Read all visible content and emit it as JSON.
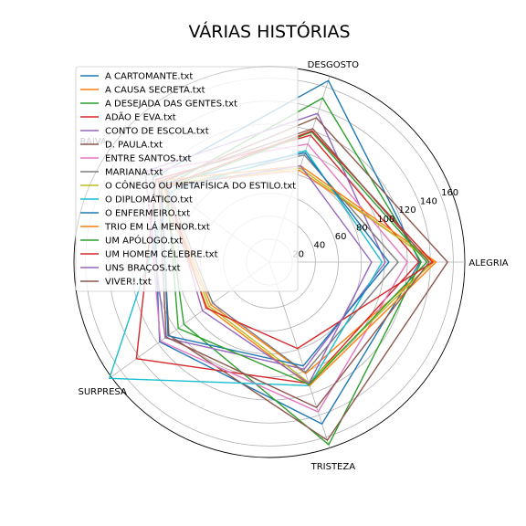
{
  "chart_data": {
    "type": "radar",
    "title": "VÁRIAS HISTÓRIAS",
    "axes": [
      "ALEGRIA",
      "DESGOSTO",
      "RAIVA",
      "SURPRESA",
      "TRISTEZA"
    ],
    "r_ticks": [
      "20",
      "40",
      "60",
      "80",
      "100",
      "120",
      "140",
      "160"
    ],
    "rlim": [
      0,
      170
    ],
    "grid": true,
    "legend_position": "upper-left",
    "series": [
      {
        "name": "A CARTOMANTE.txt",
        "color": "#1f77b4",
        "values": [
          131,
          166,
          125,
          118,
          148
        ]
      },
      {
        "name": "A CAUSA SECRETA.txt",
        "color": "#ff7f0e",
        "values": [
          143,
          84,
          114,
          63,
          102
        ]
      },
      {
        "name": "A DESEJADA DAS GENTES.txt",
        "color": "#2ca02c",
        "values": [
          132,
          150,
          112,
          92,
          167
        ]
      },
      {
        "name": "ADÃO E EVA.txt",
        "color": "#d62728",
        "values": [
          130,
          116,
          122,
          143,
          111
        ]
      },
      {
        "name": "CONTO DE ESCOLA.txt",
        "color": "#9467bd",
        "values": [
          101,
          136,
          134,
          112,
          98
        ]
      },
      {
        "name": "D. PAULA.txt",
        "color": "#8c564b",
        "values": [
          155,
          132,
          117,
          108,
          163
        ]
      },
      {
        "name": "ENTRE SANTOS.txt",
        "color": "#e377c2",
        "values": [
          120,
          108,
          133,
          117,
          137
        ]
      },
      {
        "name": "MARIANA.txt",
        "color": "#7f7f7f",
        "values": [
          112,
          98,
          110,
          61,
          101
        ]
      },
      {
        "name": "O CÔNEGO OU METAFÍSICA DO ESTILO.txt",
        "color": "#bcbd22",
        "values": [
          142,
          86,
          115,
          65,
          110
        ]
      },
      {
        "name": "O DIPLOMÁTICO.txt",
        "color": "#17becf",
        "values": [
          98,
          102,
          105,
          172,
          113
        ]
      },
      {
        "name": "O ENFERMEIRO.txt",
        "color": "#1f77b4",
        "values": [
          104,
          100,
          116,
          109,
          95
        ]
      },
      {
        "name": "TRIO EM LÁ MENOR.txt",
        "color": "#ff7f0e",
        "values": [
          145,
          88,
          120,
          67,
          113
        ]
      },
      {
        "name": "UM APÓLOGO.txt",
        "color": "#2ca02c",
        "values": [
          137,
          119,
          110,
          98,
          112
        ]
      },
      {
        "name": "UM HOMEM CÉLEBRE.txt",
        "color": "#d62728",
        "values": [
          142,
          120,
          112,
          68,
          79
        ]
      },
      {
        "name": "UNS BRAÇOS.txt",
        "color": "#9467bd",
        "values": [
          89,
          88,
          111,
          72,
          111
        ]
      },
      {
        "name": "VIVER!.txt",
        "color": "#8c564b",
        "values": [
          139,
          122,
          119,
          111,
          133
        ]
      }
    ]
  }
}
